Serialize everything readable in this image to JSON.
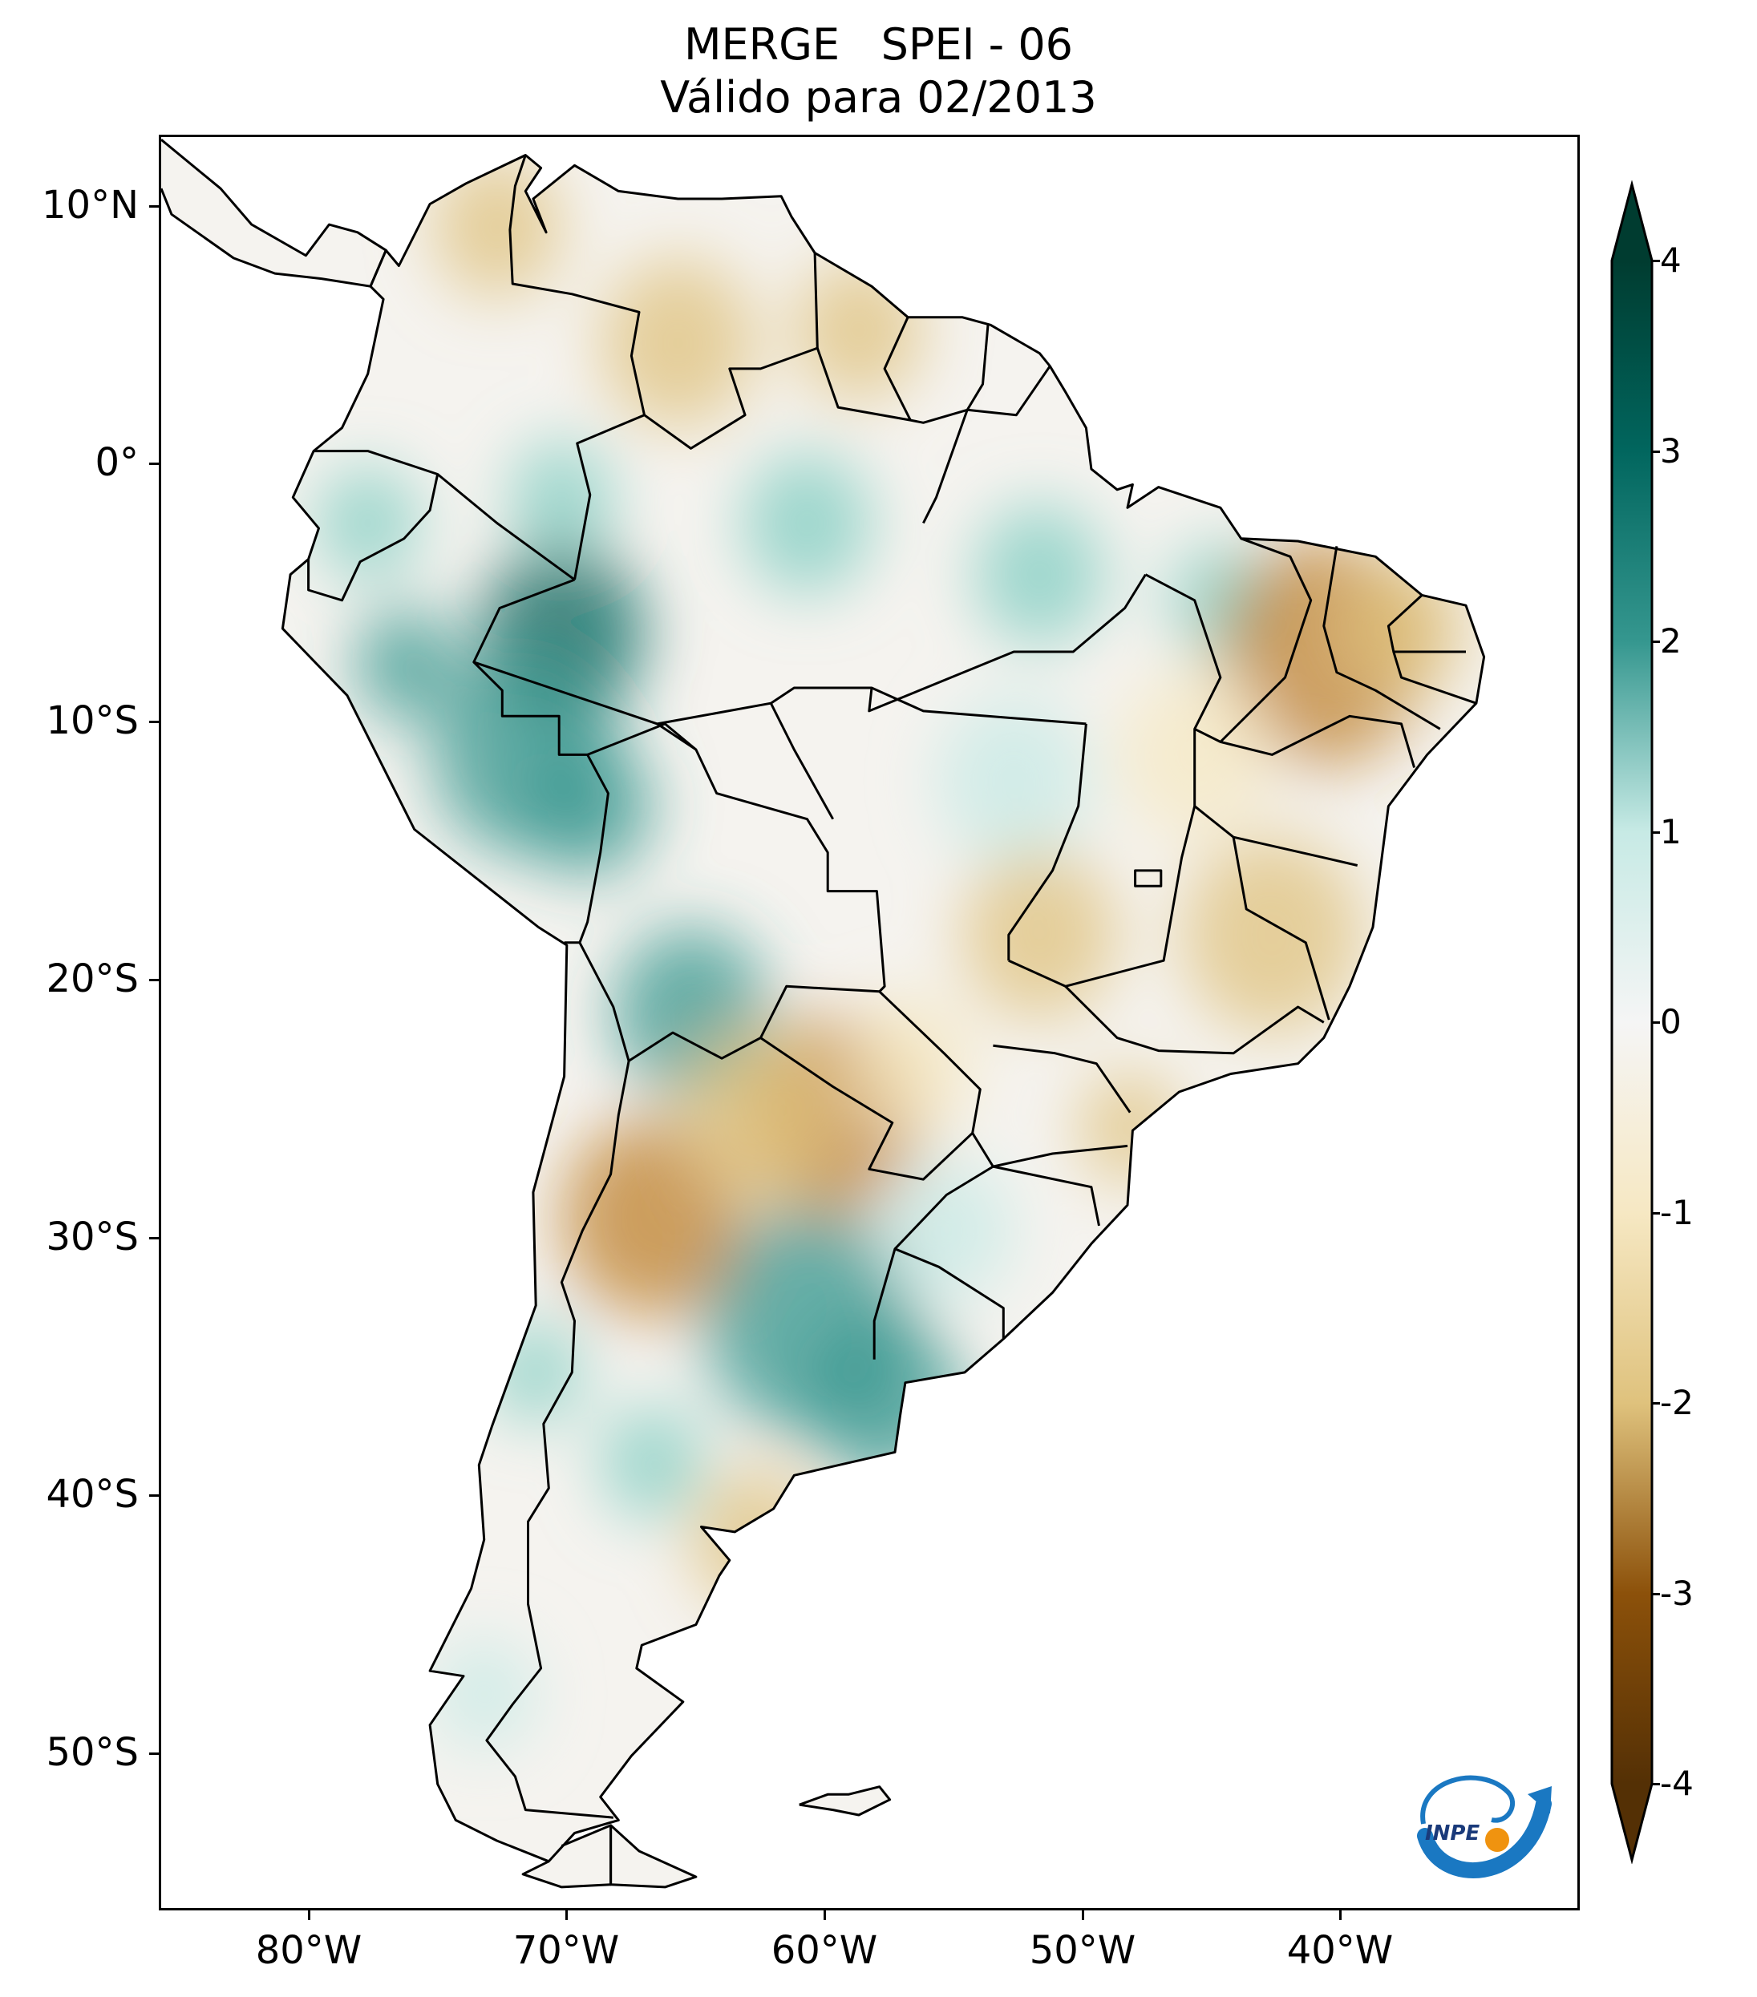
{
  "header": {
    "title_line1": "MERGE   SPEI - 06",
    "title_line2": "Válido para 02/2013"
  },
  "map": {
    "latitude_labels": [
      "10°N",
      "0°",
      "10°S",
      "20°S",
      "30°S",
      "40°S",
      "50°S"
    ],
    "longitude_labels": [
      "80°W",
      "70°W",
      "60°W",
      "50°W",
      "40°W"
    ],
    "extent": {
      "lon_min": -86,
      "lon_max": -31,
      "lat_min": -56,
      "lat_max": 13
    }
  },
  "colorbar": {
    "ticks": [
      "4",
      "3",
      "2",
      "1",
      "0",
      "-1",
      "-2",
      "-3",
      "-4"
    ],
    "range": [
      -4,
      4
    ],
    "extend": "both",
    "colormap": "BrBG",
    "colors": {
      "dry_extreme": "#543005",
      "dry_strong": "#8c510a",
      "dry_moderate": "#bf812d",
      "dry_mild": "#dfc27d",
      "dry_light": "#f6e8c3",
      "neutral": "#f5f5f5",
      "wet_light": "#c7eae5",
      "wet_mild": "#80cdc1",
      "wet_moderate": "#35978f",
      "wet_strong": "#01665e",
      "wet_extreme": "#003c30"
    }
  },
  "logo": {
    "text": "INPE",
    "icon": "inpe-logo-icon"
  }
}
